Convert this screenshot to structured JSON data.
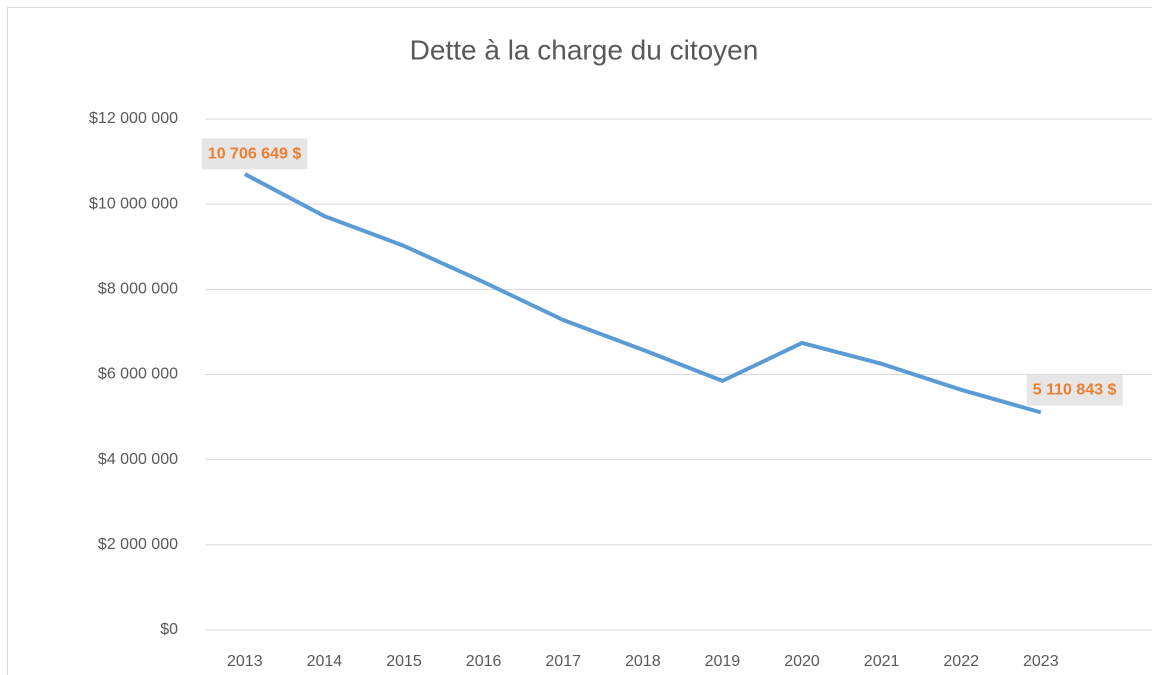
{
  "chart_data": {
    "type": "line",
    "title": "Dette à la charge du citoyen",
    "categories": [
      "2013",
      "2014",
      "2015",
      "2016",
      "2017",
      "2018",
      "2019",
      "2020",
      "2021",
      "2022",
      "2023"
    ],
    "series": [
      {
        "name": "Dette",
        "color": "#5b9bd5",
        "values": [
          10706649,
          9720000,
          9020000,
          8170000,
          7280000,
          6580000,
          5850000,
          6740000,
          6250000,
          5640000,
          5110843
        ],
        "value_labels": [
          "10 706 649 $",
          null,
          null,
          null,
          null,
          null,
          null,
          null,
          null,
          null,
          "5 110 843 $"
        ]
      }
    ],
    "ylim": [
      0,
      12000000
    ],
    "yticks": [
      {
        "value": 0,
        "label": "$0"
      },
      {
        "value": 2000000,
        "label": "$2 000 000"
      },
      {
        "value": 4000000,
        "label": "$4 000 000"
      },
      {
        "value": 6000000,
        "label": "$6 000 000"
      },
      {
        "value": 8000000,
        "label": "$8 000 000"
      },
      {
        "value": 10000000,
        "label": "$10 000 000"
      },
      {
        "value": 12000000,
        "label": "$12 000 000"
      }
    ],
    "grid": true
  }
}
